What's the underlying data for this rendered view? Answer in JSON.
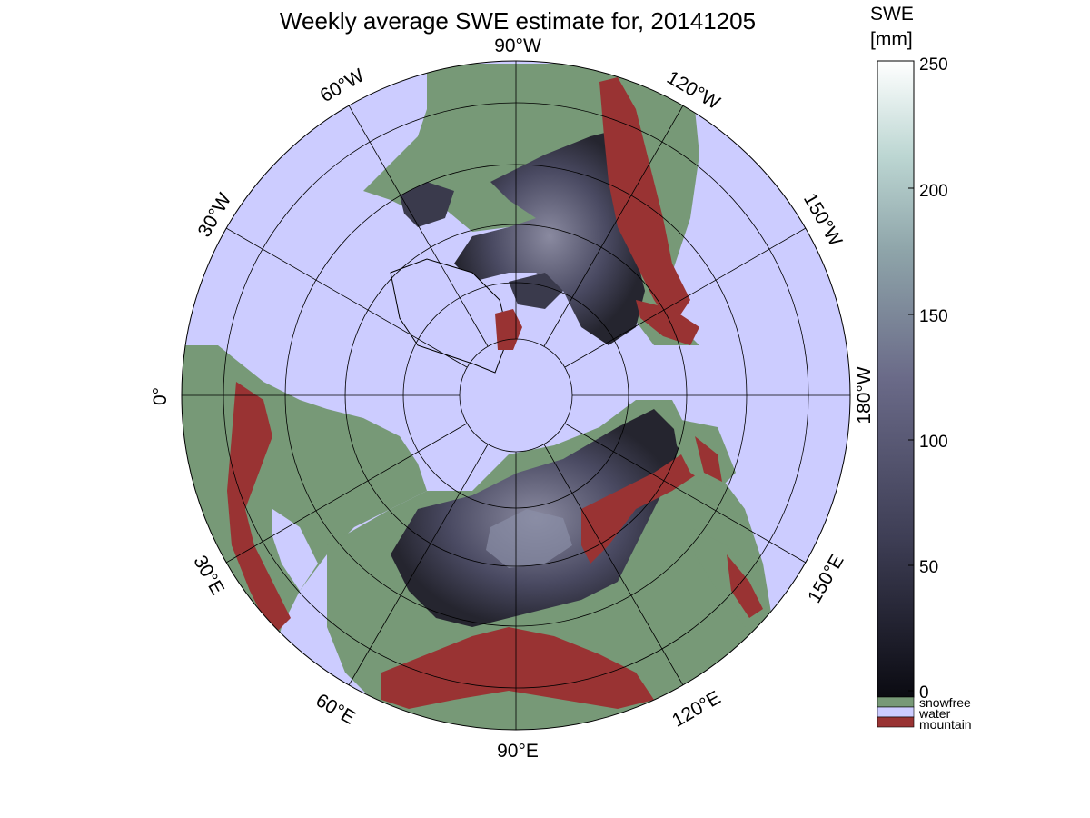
{
  "title": "Weekly average SWE estimate for, 20141205",
  "colors": {
    "water": "#ccccff",
    "snowfree": "#779977",
    "mountain": "#993333",
    "snow_low": "#0b0b12",
    "snow_mid": "#5c5c7a",
    "snow_high": "#ffffff",
    "grid": "#000000"
  },
  "map": {
    "projection": "north polar stereographic",
    "longitude_labels": {
      "lon_90W": "90°W",
      "lon_120W": "120°W",
      "lon_150W": "150°W",
      "lon_180W": "180°W",
      "lon_60W": "60°W",
      "lon_30W": "30°W",
      "lon_0": "0°",
      "lon_30E": "30°E",
      "lon_60E": "60°E",
      "lon_90E": "90°E",
      "lon_120E": "120°E",
      "lon_150E": "150°E"
    }
  },
  "colorbar": {
    "title_line1": "SWE",
    "title_line2": "[mm]",
    "range": [
      0,
      250
    ],
    "tick_labels": {
      "t0": "0",
      "t50": "50",
      "t100": "100",
      "t150": "150",
      "t200": "200",
      "t250": "250"
    },
    "categories": {
      "snowfree": "snowfree",
      "water": "water",
      "mountain": "mountain"
    }
  }
}
